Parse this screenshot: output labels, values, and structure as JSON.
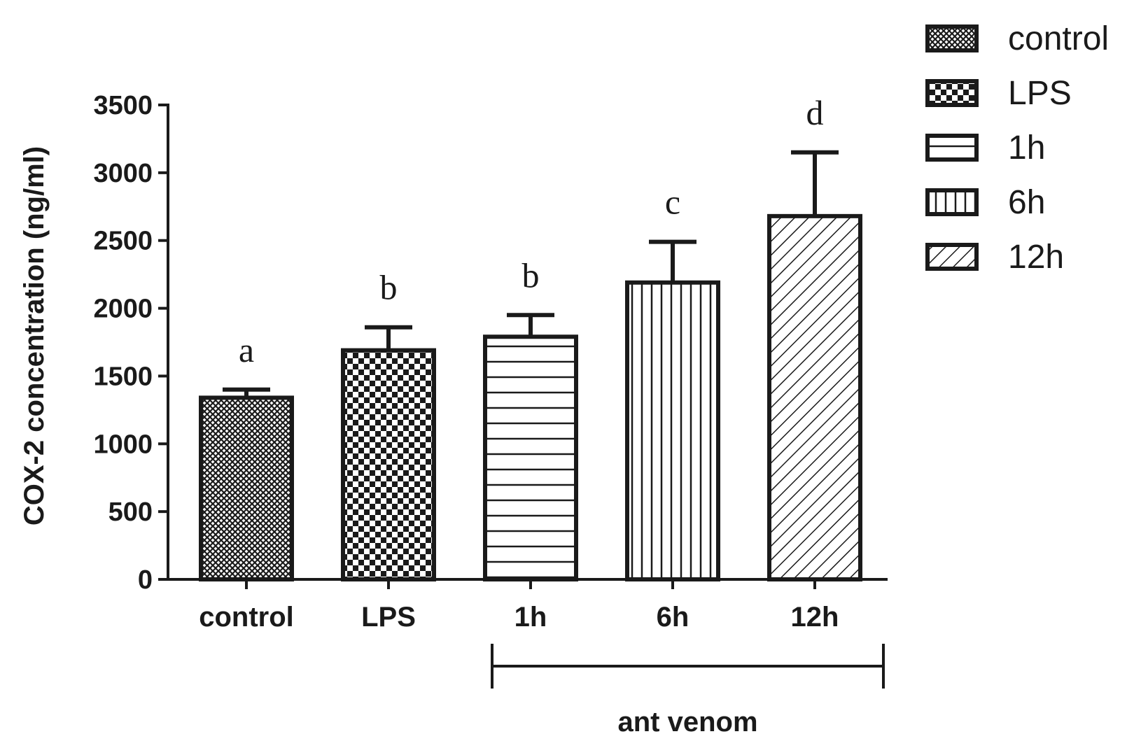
{
  "chart_data": {
    "type": "bar",
    "categories": [
      "control",
      "LPS",
      "1h",
      "6h",
      "12h"
    ],
    "values": [
      1340,
      1690,
      1790,
      2190,
      2680
    ],
    "errors": [
      60,
      170,
      160,
      300,
      470
    ],
    "significance": [
      "a",
      "b",
      "b",
      "c",
      "d"
    ],
    "patterns": [
      "crosshatch",
      "checker",
      "horizontal",
      "vertical",
      "diagonal"
    ],
    "ylabel": "COX-2 concentration (ng/ml)",
    "ylim": [
      0,
      3500
    ],
    "yticks": [
      0,
      500,
      1000,
      1500,
      2000,
      2500,
      3000,
      3500
    ],
    "group_bracket": {
      "label": "ant venom",
      "spans": [
        "1h",
        "12h"
      ]
    },
    "legend": {
      "position": "top-right",
      "entries": [
        "control",
        "LPS",
        "1h",
        "6h",
        "12h"
      ]
    },
    "grid": false
  }
}
